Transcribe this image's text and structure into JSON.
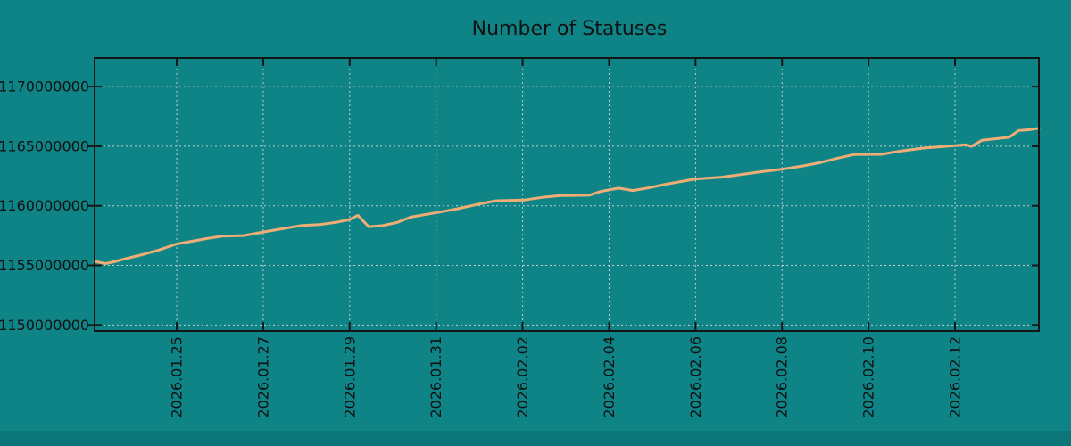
{
  "chart_data": {
    "type": "line",
    "title": "Number of Statuses",
    "legend": "none",
    "x_axis": {
      "base_date": "2026-01-23",
      "range_days": [
        0.1,
        21.94
      ],
      "grid": true,
      "ticks": [
        {
          "t": 2,
          "label": "2026.01.25"
        },
        {
          "t": 4,
          "label": "2026.01.27"
        },
        {
          "t": 6,
          "label": "2026.01.29"
        },
        {
          "t": 8,
          "label": "2026.01.31"
        },
        {
          "t": 10,
          "label": "2026.02.02"
        },
        {
          "t": 12,
          "label": "2026.02.04"
        },
        {
          "t": 14,
          "label": "2026.02.06"
        },
        {
          "t": 16,
          "label": "2026.02.08"
        },
        {
          "t": 18,
          "label": "2026.02.10"
        },
        {
          "t": 20,
          "label": "2026.02.12"
        }
      ]
    },
    "y_axis": {
      "range": [
        1149500000,
        1172400000
      ],
      "grid": true,
      "ticks": [
        {
          "v": 1150000000,
          "label": "1150000000"
        },
        {
          "v": 1155000000,
          "label": "1155000000"
        },
        {
          "v": 1160000000,
          "label": "1160000000"
        },
        {
          "v": 1165000000,
          "label": "1165000000"
        },
        {
          "v": 1170000000,
          "label": "1170000000"
        }
      ]
    },
    "series": [
      {
        "name": "statuses",
        "color": "#efad76",
        "width": 3,
        "points": [
          [
            0.1,
            1155340000
          ],
          [
            0.35,
            1155150000
          ],
          [
            0.55,
            1155300000
          ],
          [
            0.8,
            1155550000
          ],
          [
            1.2,
            1155900000
          ],
          [
            1.6,
            1156300000
          ],
          [
            2.0,
            1156800000
          ],
          [
            2.35,
            1157020000
          ],
          [
            2.7,
            1157250000
          ],
          [
            3.05,
            1157450000
          ],
          [
            3.55,
            1157500000
          ],
          [
            4.0,
            1157800000
          ],
          [
            4.45,
            1158080000
          ],
          [
            4.9,
            1158350000
          ],
          [
            5.3,
            1158420000
          ],
          [
            5.7,
            1158620000
          ],
          [
            6.0,
            1158850000
          ],
          [
            6.19,
            1159200000
          ],
          [
            6.44,
            1158250000
          ],
          [
            6.75,
            1158330000
          ],
          [
            7.1,
            1158600000
          ],
          [
            7.41,
            1159050000
          ],
          [
            8.03,
            1159440000
          ],
          [
            8.5,
            1159750000
          ],
          [
            9.0,
            1160150000
          ],
          [
            9.37,
            1160420000
          ],
          [
            10.03,
            1160480000
          ],
          [
            10.45,
            1160700000
          ],
          [
            10.88,
            1160850000
          ],
          [
            11.54,
            1160880000
          ],
          [
            11.8,
            1161200000
          ],
          [
            12.0,
            1161330000
          ],
          [
            12.22,
            1161480000
          ],
          [
            12.55,
            1161280000
          ],
          [
            12.9,
            1161500000
          ],
          [
            13.3,
            1161800000
          ],
          [
            14.0,
            1162250000
          ],
          [
            14.6,
            1162400000
          ],
          [
            15.0,
            1162600000
          ],
          [
            15.5,
            1162850000
          ],
          [
            16.0,
            1163070000
          ],
          [
            16.5,
            1163350000
          ],
          [
            16.9,
            1163640000
          ],
          [
            17.3,
            1164000000
          ],
          [
            17.67,
            1164300000
          ],
          [
            18.29,
            1164320000
          ],
          [
            18.76,
            1164600000
          ],
          [
            19.3,
            1164850000
          ],
          [
            20.0,
            1165040000
          ],
          [
            20.25,
            1165120000
          ],
          [
            20.38,
            1164980000
          ],
          [
            20.62,
            1165490000
          ],
          [
            21.0,
            1165650000
          ],
          [
            21.26,
            1165760000
          ],
          [
            21.47,
            1166310000
          ],
          [
            21.76,
            1166400000
          ],
          [
            21.94,
            1166500000
          ]
        ]
      }
    ],
    "colors": {
      "background": "#0e8487",
      "background_bottom_strip": "#0c7578",
      "grid": "#c2cccc",
      "axis": "#151515",
      "text": "#111111"
    }
  }
}
